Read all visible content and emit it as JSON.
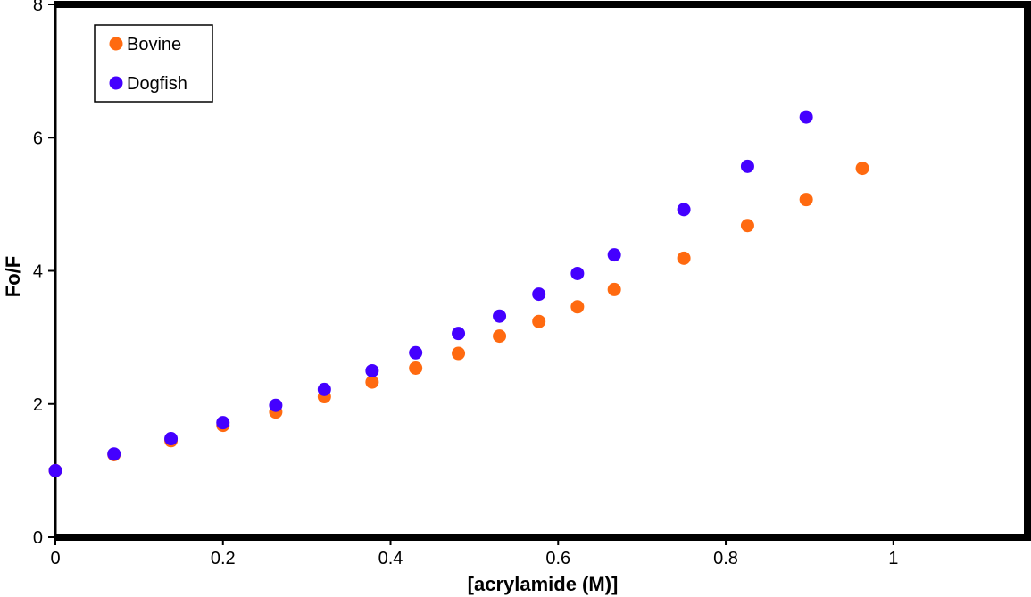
{
  "chart_data": {
    "type": "scatter",
    "title": "",
    "xlabel": "[acrylamide (M)]",
    "ylabel": "Fo/F",
    "xlim": [
      0,
      1.16
    ],
    "ylim": [
      0,
      8
    ],
    "x_ticks": [
      0,
      0.2,
      0.4,
      0.6,
      0.8,
      1
    ],
    "x_tick_labels": [
      "0",
      "0.2",
      "0.4",
      "0.6",
      "0.8",
      "1"
    ],
    "y_ticks": [
      0,
      2,
      4,
      6,
      8
    ],
    "y_tick_labels": [
      "0",
      "2",
      "4",
      "6",
      "8"
    ],
    "grid": false,
    "legend_position": "top-left",
    "series": [
      {
        "name": "Bovine",
        "color": "#ff6a10",
        "marker": "circle",
        "points": [
          [
            0,
            1.0
          ],
          [
            0.07,
            1.24
          ],
          [
            0.138,
            1.45
          ],
          [
            0.2,
            1.68
          ],
          [
            0.263,
            1.88
          ],
          [
            0.321,
            2.11
          ],
          [
            0.378,
            2.33
          ],
          [
            0.43,
            2.54
          ],
          [
            0.481,
            2.76
          ],
          [
            0.53,
            3.02
          ],
          [
            0.577,
            3.24
          ],
          [
            0.623,
            3.46
          ],
          [
            0.667,
            3.72
          ],
          [
            0.75,
            4.19
          ],
          [
            0.826,
            4.68
          ],
          [
            0.896,
            5.07
          ],
          [
            0.963,
            5.54
          ]
        ]
      },
      {
        "name": "Dogfish",
        "color": "#4400ff",
        "marker": "circle",
        "points": [
          [
            0,
            1.0
          ],
          [
            0.07,
            1.25
          ],
          [
            0.138,
            1.48
          ],
          [
            0.2,
            1.72
          ],
          [
            0.263,
            1.98
          ],
          [
            0.321,
            2.22
          ],
          [
            0.378,
            2.5
          ],
          [
            0.43,
            2.77
          ],
          [
            0.481,
            3.06
          ],
          [
            0.53,
            3.32
          ],
          [
            0.577,
            3.65
          ],
          [
            0.623,
            3.96
          ],
          [
            0.667,
            4.24
          ],
          [
            0.75,
            4.92
          ],
          [
            0.826,
            5.57
          ],
          [
            0.896,
            6.31
          ]
        ]
      }
    ]
  }
}
